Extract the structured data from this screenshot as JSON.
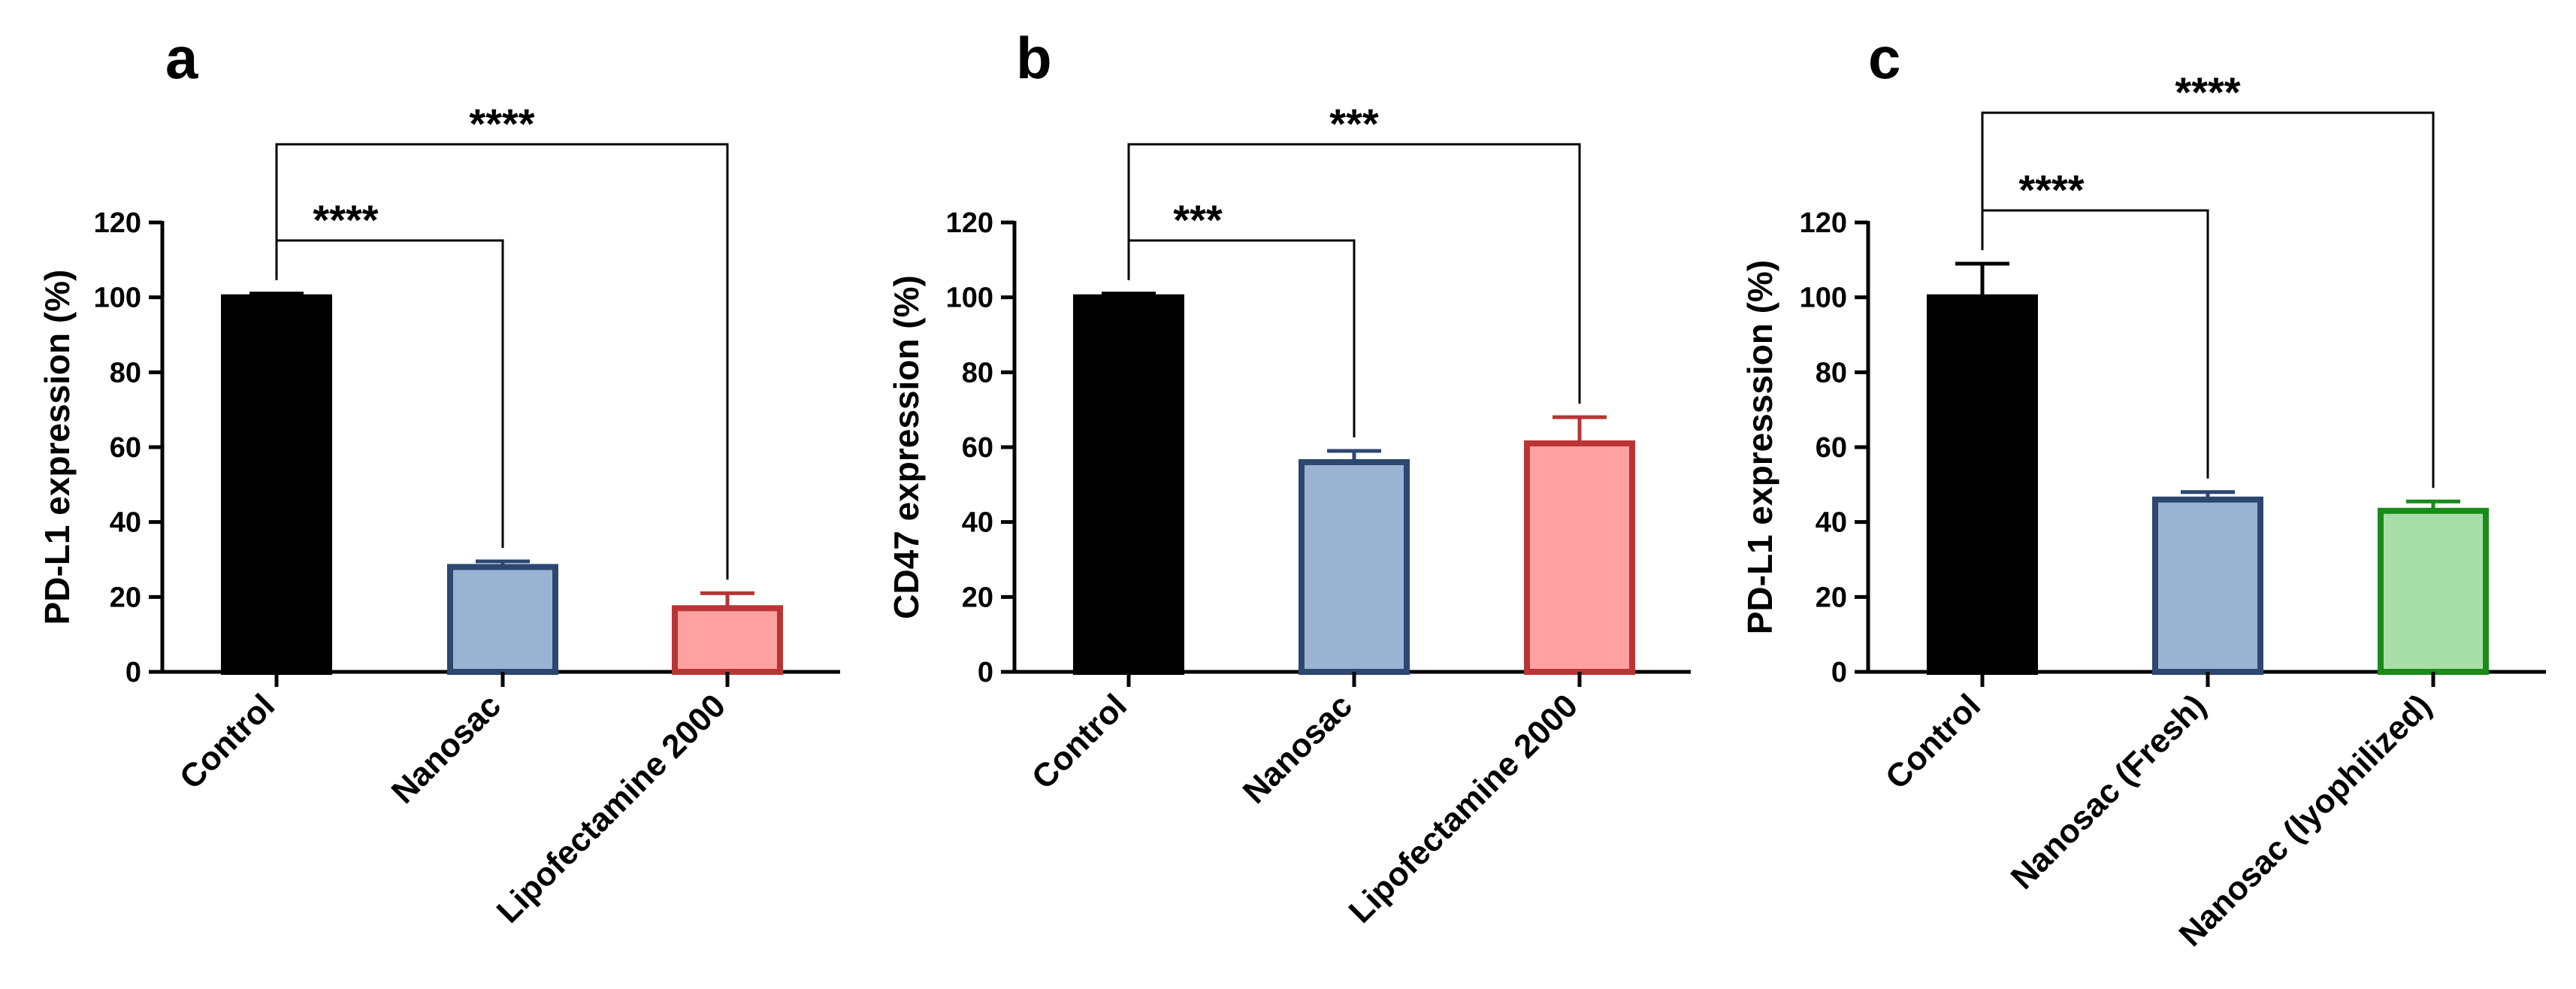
{
  "chart_data": [
    {
      "type": "bar",
      "panel": "a",
      "ylabel": "PD-L1 expression (%)",
      "ylim": [
        0,
        120
      ],
      "yticks": [
        "0",
        "20",
        "40",
        "60",
        "80",
        "100",
        "120"
      ],
      "categories": [
        "Control",
        "Nanosac",
        "Lipofectamine 2000"
      ],
      "values": [
        100,
        28,
        17
      ],
      "errors": [
        1,
        1.5,
        4
      ],
      "fill_colors": [
        "#000000",
        "#9bb3d3",
        "#ffa1a1"
      ],
      "edge_colors": [
        "#000000",
        "#2c4770",
        "#b93535"
      ],
      "significance": [
        {
          "from": 0,
          "to": 1,
          "label": "****"
        },
        {
          "from": 0,
          "to": 2,
          "label": "****"
        }
      ]
    },
    {
      "type": "bar",
      "panel": "b",
      "ylabel": "CD47 expression (%)",
      "ylim": [
        0,
        120
      ],
      "yticks": [
        "0",
        "20",
        "40",
        "60",
        "80",
        "100",
        "120"
      ],
      "categories": [
        "Control",
        "Nanosac",
        "Lipofectamine 2000"
      ],
      "values": [
        100,
        56,
        61
      ],
      "errors": [
        1,
        3,
        7
      ],
      "fill_colors": [
        "#000000",
        "#9bb3d3",
        "#ffa1a1"
      ],
      "edge_colors": [
        "#000000",
        "#2c4770",
        "#b93535"
      ],
      "significance": [
        {
          "from": 0,
          "to": 1,
          "label": "***"
        },
        {
          "from": 0,
          "to": 2,
          "label": "***"
        }
      ]
    },
    {
      "type": "bar",
      "panel": "c",
      "ylabel": "PD-L1 expresssion (%)",
      "ylim": [
        0,
        120
      ],
      "yticks": [
        "0",
        "20",
        "40",
        "60",
        "80",
        "100",
        "120"
      ],
      "categories": [
        "Control",
        "Nanosac (Fresh)",
        "Nanosac (lyophilized)"
      ],
      "values": [
        100,
        46,
        43
      ],
      "errors": [
        9,
        2,
        2.5
      ],
      "fill_colors": [
        "#000000",
        "#9bb3d3",
        "#a8dea8"
      ],
      "edge_colors": [
        "#000000",
        "#2c4770",
        "#1a8a1a"
      ],
      "significance": [
        {
          "from": 0,
          "to": 1,
          "label": "****"
        },
        {
          "from": 0,
          "to": 2,
          "label": "****"
        }
      ]
    }
  ]
}
